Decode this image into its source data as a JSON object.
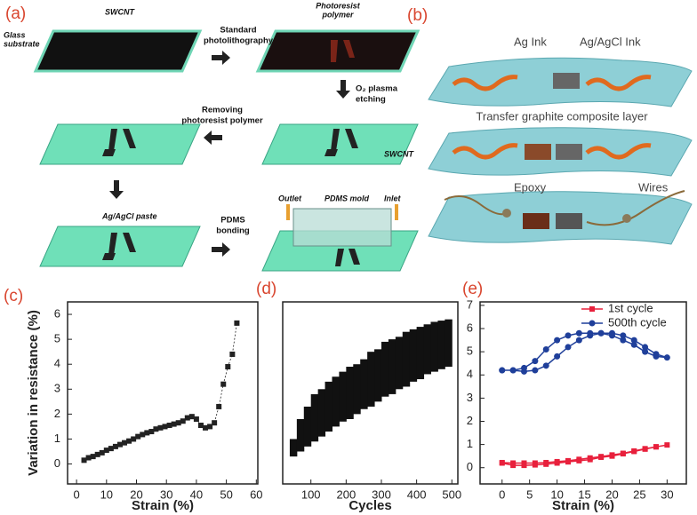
{
  "panel_a": {
    "label": "(a)",
    "swcnt_top": "SWCNT",
    "glass_substrate": [
      "Glass",
      "substrate"
    ],
    "step1": [
      "Standard",
      "photolithography"
    ],
    "photoresist": [
      "Photoresist",
      "polymer"
    ],
    "step2": [
      "O₂ plasma",
      "etching"
    ],
    "step3": [
      "Removing",
      "photoresist polymer"
    ],
    "swcnt_mid": "SWCNT",
    "paste": "Ag/AgCl paste",
    "step4": [
      "PDMS",
      "bonding"
    ],
    "mold": "PDMS mold",
    "outlet": "Outlet",
    "inlet": "Inlet"
  },
  "panel_b": {
    "label": "(b)",
    "ag_ink": "Ag Ink",
    "agcl_ink": "Ag/AgCl Ink",
    "transfer": "Transfer graphite composite layer",
    "epoxy": "Epoxy",
    "wires": "Wires"
  },
  "chart_data": [
    {
      "type": "line",
      "label": "(c)",
      "xlabel": "Strain (%)",
      "ylabel": "Variation in resistance (%)",
      "x": [
        2.5,
        4,
        5.5,
        7,
        8.5,
        10,
        11.5,
        13,
        14.5,
        16,
        17.5,
        19,
        20.5,
        22,
        23.5,
        25,
        26.5,
        28,
        29.5,
        31,
        32.5,
        34,
        35.5,
        37,
        38.5,
        40,
        41.5,
        43,
        44.5,
        46,
        47.5,
        49,
        50.5,
        52,
        53.5
      ],
      "series": [
        {
          "color": "#222222",
          "marker": "square",
          "values": [
            0.15,
            0.25,
            0.3,
            0.38,
            0.45,
            0.55,
            0.62,
            0.7,
            0.78,
            0.85,
            0.92,
            1.0,
            1.1,
            1.18,
            1.25,
            1.3,
            1.4,
            1.45,
            1.5,
            1.55,
            1.6,
            1.65,
            1.72,
            1.85,
            1.9,
            1.8,
            1.55,
            1.45,
            1.5,
            1.65,
            2.3,
            3.2,
            3.9,
            4.4,
            5.65
          ]
        }
      ],
      "xlim": [
        -3,
        60.5
      ],
      "ylim": [
        -0.8,
        6.5
      ],
      "xticks": [
        0,
        10,
        20,
        30,
        40,
        50,
        60
      ],
      "yticks": [
        0,
        1,
        2,
        3,
        4,
        5,
        6
      ]
    },
    {
      "type": "range",
      "label": "(d)",
      "xlabel": "Cycles",
      "color": "#111111",
      "x": [
        50,
        70,
        90,
        110,
        130,
        150,
        170,
        190,
        210,
        230,
        250,
        270,
        290,
        310,
        330,
        350,
        370,
        390,
        410,
        430,
        450,
        470,
        490
      ],
      "lower": [
        0.3,
        0.5,
        0.7,
        0.9,
        1.1,
        1.3,
        1.5,
        1.7,
        1.8,
        2.0,
        2.2,
        2.3,
        2.5,
        2.7,
        2.8,
        3.0,
        3.1,
        3.3,
        3.4,
        3.6,
        3.7,
        3.8,
        3.9
      ],
      "upper": [
        1.0,
        1.8,
        2.3,
        2.8,
        3.0,
        3.3,
        3.5,
        3.7,
        3.9,
        4.0,
        4.2,
        4.5,
        4.6,
        4.9,
        5.0,
        5.1,
        5.3,
        5.4,
        5.5,
        5.6,
        5.7,
        5.75,
        5.8
      ],
      "xlim": [
        20,
        517
      ],
      "ylim": [
        -0.8,
        6.5
      ],
      "xticks": [
        100,
        200,
        300,
        400,
        500
      ]
    },
    {
      "type": "line",
      "label": "(e)",
      "xlabel": "Strain (%)",
      "legend": "upper right",
      "x": [
        0,
        2,
        4,
        6,
        8,
        10,
        12,
        14,
        16,
        18,
        20,
        22,
        24,
        26,
        28,
        30,
        28,
        26,
        24,
        22,
        20,
        18,
        16,
        14,
        12,
        10,
        8,
        6,
        4,
        2,
        0
      ],
      "series": [
        {
          "name": "1st cycle",
          "color": "#e8203c",
          "marker": "square",
          "values": [
            0.2,
            0.1,
            0.1,
            0.12,
            0.15,
            0.2,
            0.25,
            0.3,
            0.35,
            0.45,
            0.5,
            0.6,
            0.7,
            0.8,
            0.9,
            0.98,
            0.9,
            0.82,
            0.72,
            0.62,
            0.55,
            0.48,
            0.42,
            0.36,
            0.3,
            0.26,
            0.22,
            0.2,
            0.2,
            0.2,
            0.22
          ]
        },
        {
          "name": "500th cycle",
          "color": "#1f3f9a",
          "marker": "circle",
          "values": [
            4.2,
            4.2,
            4.15,
            4.2,
            4.4,
            4.8,
            5.2,
            5.5,
            5.7,
            5.8,
            5.8,
            5.7,
            5.5,
            5.2,
            4.9,
            4.75,
            4.8,
            5.0,
            5.3,
            5.5,
            5.7,
            5.8,
            5.8,
            5.8,
            5.7,
            5.5,
            5.1,
            4.6,
            4.3,
            4.2,
            4.2
          ]
        }
      ],
      "xlim": [
        -4,
        33.5
      ],
      "ylim": [
        -0.7,
        7.15
      ],
      "xticks": [
        0,
        5,
        10,
        15,
        20,
        25,
        30
      ],
      "yticks": [
        0,
        1,
        2,
        3,
        4,
        5,
        6,
        7
      ]
    }
  ]
}
